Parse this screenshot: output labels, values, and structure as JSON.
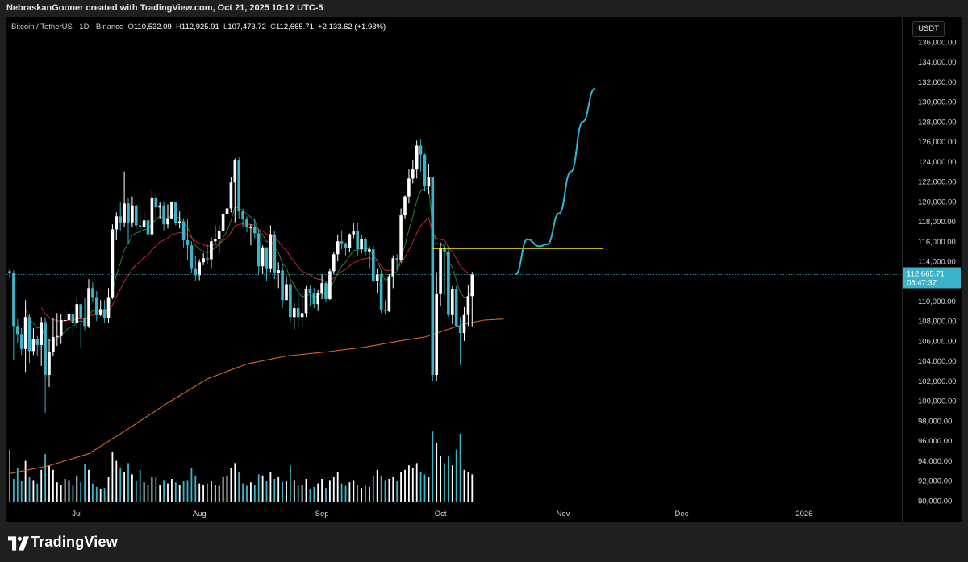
{
  "header": {
    "attribution": "NebraskanGooner created with TradingView.com, Oct 21, 2025 10:12 UTC-5"
  },
  "legend": {
    "symbol": "Bitcoin / TetherUS · 1D · Binance",
    "open_label": "O",
    "open": "110,532.09",
    "high_label": "H",
    "high": "112,925.91",
    "low_label": "L",
    "low": "107,473.72",
    "close_label": "C",
    "close": "112,665.71",
    "change": "+2,133.62 (+1.93%)"
  },
  "currency": "USDT",
  "price_tag": {
    "price": "112,665.71",
    "countdown": "08:47:37"
  },
  "brand": {
    "name": "TradingView"
  },
  "colors": {
    "bull": "#ffffff",
    "bear": "#3bb3c9",
    "ema_short": "#2e7d32",
    "ema_mid": "#c62828",
    "ema_long": "#e0642a",
    "projection": "#2bb8d6",
    "resistance": "#ffee00",
    "background": "#000000"
  },
  "chart_data": {
    "type": "candlestick",
    "yaxis_ticks": [
      "136,000.00",
      "134,000.00",
      "132,000.00",
      "130,000.00",
      "128,000.00",
      "126,000.00",
      "124,000.00",
      "122,000.00",
      "120,000.00",
      "118,000.00",
      "116,000.00",
      "114,000.00",
      "110,000.00",
      "108,000.00",
      "106,000.00",
      "104,000.00",
      "102,000.00",
      "100,000.00",
      "98,000.00",
      "96,000.00",
      "94,000.00",
      "92,000.00",
      "90,000.00"
    ],
    "yaxis_tick_values": [
      136000,
      134000,
      132000,
      130000,
      128000,
      126000,
      124000,
      122000,
      120000,
      118000,
      116000,
      114000,
      110000,
      108000,
      106000,
      104000,
      102000,
      100000,
      98000,
      96000,
      94000,
      92000,
      90000
    ],
    "ylim": [
      89500,
      138500
    ],
    "xaxis_ticks": [
      {
        "label": "Jul",
        "day": 17
      },
      {
        "label": "Aug",
        "day": 48
      },
      {
        "label": "Sep",
        "day": 79
      },
      {
        "label": "Oct",
        "day": 109
      },
      {
        "label": "Nov",
        "day": 140
      },
      {
        "label": "Dec",
        "day": 170
      },
      {
        "label": "2026",
        "day": 201
      }
    ],
    "last_price": 112665.71,
    "resistance_level": 115300,
    "resistance_day_range": [
      107,
      150
    ],
    "ema_long_points": [
      [
        0,
        92700
      ],
      [
        10,
        93500
      ],
      [
        20,
        94700
      ],
      [
        30,
        97200
      ],
      [
        40,
        99800
      ],
      [
        50,
        102200
      ],
      [
        60,
        103700
      ],
      [
        70,
        104500
      ],
      [
        80,
        104900
      ],
      [
        90,
        105400
      ],
      [
        100,
        106100
      ],
      [
        105,
        106400
      ],
      [
        115,
        107700
      ],
      [
        120,
        108100
      ],
      [
        125,
        108200
      ]
    ],
    "projection_path": [
      [
        128,
        112700
      ],
      [
        131,
        116200
      ],
      [
        134,
        115500
      ],
      [
        136,
        115700
      ],
      [
        139,
        118800
      ],
      [
        142,
        123000
      ],
      [
        145,
        128000
      ],
      [
        148,
        131300
      ]
    ],
    "candles": [
      [
        113000,
        112800,
        113300,
        112300,
        230
      ],
      [
        112800,
        107500,
        113100,
        104100,
        100
      ],
      [
        107500,
        106700,
        108200,
        105800,
        150
      ],
      [
        106700,
        105200,
        107300,
        104600,
        90
      ],
      [
        105200,
        108400,
        110100,
        102900,
        180
      ],
      [
        108400,
        105000,
        108700,
        103800,
        110
      ],
      [
        105000,
        106200,
        107300,
        104600,
        95
      ],
      [
        106200,
        105600,
        106500,
        104500,
        80
      ],
      [
        105600,
        107900,
        108400,
        103500,
        140
      ],
      [
        107900,
        102600,
        108400,
        98800,
        210
      ],
      [
        102600,
        104900,
        106200,
        101400,
        160
      ],
      [
        104900,
        106400,
        108300,
        104500,
        140
      ],
      [
        106400,
        106500,
        108800,
        105500,
        85
      ],
      [
        106500,
        108100,
        108700,
        105700,
        75
      ],
      [
        108100,
        108100,
        109100,
        107200,
        100
      ],
      [
        108100,
        108700,
        109800,
        107900,
        95
      ],
      [
        108700,
        107800,
        109000,
        106500,
        70
      ],
      [
        107800,
        109700,
        110400,
        107300,
        115
      ],
      [
        109700,
        108300,
        109700,
        105300,
        85
      ],
      [
        108300,
        107500,
        110300,
        107100,
        165
      ],
      [
        107500,
        111300,
        112200,
        107300,
        140
      ],
      [
        111300,
        110400,
        111900,
        109900,
        80
      ],
      [
        110400,
        108600,
        111000,
        108000,
        65
      ],
      [
        108600,
        109200,
        110100,
        108500,
        55
      ],
      [
        109200,
        108300,
        110100,
        107800,
        60
      ],
      [
        108300,
        110400,
        111300,
        107800,
        110
      ],
      [
        110400,
        117200,
        117700,
        110200,
        220
      ],
      [
        117200,
        118500,
        118900,
        116100,
        180
      ],
      [
        118500,
        117900,
        119900,
        117000,
        150
      ],
      [
        117900,
        119800,
        123000,
        117400,
        130
      ],
      [
        119800,
        117900,
        120400,
        115800,
        170
      ],
      [
        117900,
        119600,
        120500,
        117400,
        120
      ],
      [
        119600,
        117600,
        119700,
        117200,
        90
      ],
      [
        117600,
        117400,
        118800,
        116900,
        140
      ],
      [
        117400,
        118100,
        119000,
        117100,
        85
      ],
      [
        118100,
        116700,
        118800,
        116200,
        75
      ],
      [
        116700,
        120400,
        121100,
        116400,
        110
      ],
      [
        120400,
        119400,
        120600,
        118100,
        110
      ],
      [
        119400,
        119600,
        119900,
        118300,
        75
      ],
      [
        119600,
        117700,
        119900,
        117100,
        95
      ],
      [
        117700,
        118300,
        119700,
        117300,
        80
      ],
      [
        118300,
        119900,
        120000,
        118700,
        100
      ],
      [
        119900,
        117800,
        119900,
        117600,
        85
      ],
      [
        117800,
        118000,
        119000,
        117300,
        75
      ],
      [
        118000,
        116100,
        118300,
        115400,
        90
      ],
      [
        116100,
        115600,
        118300,
        114100,
        95
      ],
      [
        115600,
        113300,
        116000,
        112800,
        150
      ],
      [
        113300,
        112600,
        114500,
        112000,
        115
      ],
      [
        112600,
        113900,
        114200,
        112100,
        80
      ],
      [
        113900,
        114300,
        114800,
        113600,
        75
      ],
      [
        114300,
        114200,
        115800,
        113700,
        80
      ],
      [
        114200,
        116000,
        116400,
        113300,
        90
      ],
      [
        116000,
        116200,
        117600,
        115700,
        75
      ],
      [
        116200,
        117000,
        117600,
        114800,
        70
      ],
      [
        117000,
        118700,
        119000,
        116800,
        110
      ],
      [
        118700,
        119300,
        120600,
        118600,
        115
      ],
      [
        119300,
        121900,
        122400,
        118900,
        150
      ],
      [
        121900,
        124100,
        124300,
        117900,
        170
      ],
      [
        124100,
        119000,
        124400,
        118200,
        130
      ],
      [
        119000,
        118200,
        119300,
        117400,
        80
      ],
      [
        118200,
        117400,
        118500,
        116900,
        70
      ],
      [
        117400,
        117400,
        117700,
        115600,
        85
      ],
      [
        117400,
        116800,
        118300,
        116300,
        75
      ],
      [
        116800,
        113500,
        117200,
        112600,
        120
      ],
      [
        113500,
        115400,
        115600,
        112700,
        115
      ],
      [
        115400,
        113300,
        115400,
        112000,
        90
      ],
      [
        113300,
        116700,
        117600,
        112900,
        130
      ],
      [
        116700,
        112800,
        117000,
        112200,
        100
      ],
      [
        112800,
        113100,
        113900,
        111300,
        110
      ],
      [
        113100,
        110100,
        113700,
        109300,
        85
      ],
      [
        110100,
        111700,
        112500,
        110100,
        90
      ],
      [
        111700,
        108400,
        112000,
        107900,
        160
      ],
      [
        108400,
        109300,
        109800,
        107200,
        95
      ],
      [
        109300,
        108400,
        110900,
        107500,
        70
      ],
      [
        108400,
        108800,
        111100,
        107400,
        75
      ],
      [
        108800,
        111200,
        111500,
        108400,
        100
      ],
      [
        111200,
        110800,
        111600,
        109500,
        55
      ],
      [
        110800,
        109700,
        111300,
        109300,
        65
      ],
      [
        109700,
        110800,
        111100,
        109000,
        80
      ],
      [
        110800,
        111800,
        112700,
        110200,
        100
      ],
      [
        111800,
        110200,
        112000,
        109900,
        60
      ],
      [
        110200,
        113000,
        113300,
        110100,
        95
      ],
      [
        113000,
        114700,
        114900,
        112700,
        110
      ],
      [
        114700,
        116000,
        116600,
        114000,
        130
      ],
      [
        116000,
        115800,
        117100,
        115200,
        80
      ],
      [
        115800,
        115300,
        115900,
        114600,
        70
      ],
      [
        115300,
        116700,
        116800,
        114900,
        85
      ],
      [
        116700,
        117000,
        117800,
        116300,
        95
      ],
      [
        117000,
        115200,
        117800,
        114500,
        75
      ],
      [
        115200,
        116200,
        116600,
        114800,
        60
      ],
      [
        116200,
        115000,
        116400,
        114600,
        70
      ],
      [
        115000,
        115200,
        115500,
        113300,
        65
      ],
      [
        115200,
        112000,
        115600,
        111800,
        115
      ],
      [
        112000,
        112700,
        113300,
        110800,
        140
      ],
      [
        112700,
        109100,
        113000,
        108800,
        115
      ],
      [
        109100,
        109000,
        110100,
        108700,
        95
      ],
      [
        109000,
        112500,
        112700,
        108900,
        100
      ],
      [
        112500,
        114300,
        114600,
        111300,
        110
      ],
      [
        114300,
        114100,
        114700,
        113100,
        90
      ],
      [
        114100,
        118600,
        119300,
        113900,
        130
      ],
      [
        118600,
        120500,
        120600,
        118300,
        140
      ],
      [
        120500,
        122300,
        123200,
        119800,
        160
      ],
      [
        122300,
        123200,
        124200,
        121800,
        150
      ],
      [
        123200,
        125600,
        126100,
        122300,
        170
      ],
      [
        125600,
        124700,
        126200,
        123000,
        130
      ],
      [
        124700,
        121500,
        124800,
        121000,
        120
      ],
      [
        121500,
        122400,
        123800,
        120700,
        110
      ],
      [
        122400,
        102600,
        122500,
        102000,
        310
      ],
      [
        102600,
        110700,
        112900,
        102000,
        260
      ],
      [
        110700,
        115300,
        115900,
        109500,
        200
      ],
      [
        115300,
        115000,
        115700,
        110600,
        170
      ],
      [
        115000,
        108600,
        115500,
        108400,
        200
      ],
      [
        108600,
        111200,
        111500,
        107700,
        160
      ],
      [
        111200,
        107500,
        111500,
        107400,
        230
      ],
      [
        107500,
        106800,
        108400,
        103600,
        300
      ],
      [
        106800,
        108600,
        109400,
        106000,
        140
      ],
      [
        108600,
        110500,
        111600,
        107500,
        130
      ],
      [
        110500,
        112666,
        112926,
        107474,
        120
      ]
    ],
    "ema_short_last": 116000
  }
}
